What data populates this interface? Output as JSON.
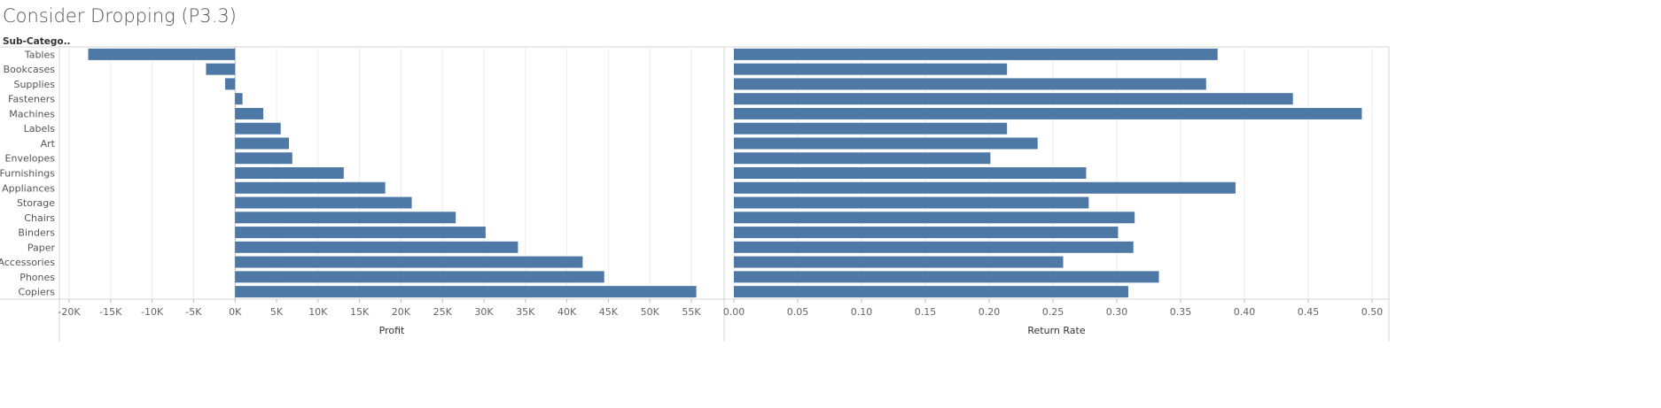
{
  "title": "Consider Dropping (P3.3)",
  "chart_data": [
    {
      "type": "bar",
      "orientation": "horizontal",
      "row_header": "Sub-Catego..",
      "categories": [
        "Tables",
        "Bookcases",
        "Supplies",
        "Fasteners",
        "Machines",
        "Labels",
        "Art",
        "Envelopes",
        "Furnishings",
        "Appliances",
        "Storage",
        "Chairs",
        "Binders",
        "Paper",
        "Accessories",
        "Phones",
        "Copiers"
      ],
      "values": [
        -17700,
        -3500,
        -1200,
        900,
        3400,
        5500,
        6500,
        6900,
        13100,
        18100,
        21300,
        26600,
        30200,
        34100,
        41900,
        44500,
        55600
      ],
      "xlabel": "Profit",
      "xlim": [
        -20000,
        55000
      ],
      "ticks": [
        -20000,
        -15000,
        -10000,
        -5000,
        0,
        5000,
        10000,
        15000,
        20000,
        25000,
        30000,
        35000,
        40000,
        45000,
        50000,
        55000
      ],
      "tick_labels": [
        "-20K",
        "-15K",
        "-10K",
        "-5K",
        "0K",
        "5K",
        "10K",
        "15K",
        "20K",
        "25K",
        "30K",
        "35K",
        "40K",
        "45K",
        "50K",
        "55K"
      ],
      "grid": true,
      "bar_color": "#4e79a7"
    },
    {
      "type": "bar",
      "orientation": "horizontal",
      "categories": [
        "Tables",
        "Bookcases",
        "Supplies",
        "Fasteners",
        "Machines",
        "Labels",
        "Art",
        "Envelopes",
        "Furnishings",
        "Appliances",
        "Storage",
        "Chairs",
        "Binders",
        "Paper",
        "Accessories",
        "Phones",
        "Copiers"
      ],
      "values": [
        0.379,
        0.214,
        0.37,
        0.438,
        0.492,
        0.214,
        0.238,
        0.201,
        0.276,
        0.393,
        0.278,
        0.314,
        0.301,
        0.313,
        0.258,
        0.333,
        0.309
      ],
      "xlabel": "Return Rate",
      "xlim": [
        0,
        0.5
      ],
      "ticks": [
        0,
        0.05,
        0.1,
        0.15,
        0.2,
        0.25,
        0.3,
        0.35,
        0.4,
        0.45,
        0.5
      ],
      "tick_labels": [
        "0.00",
        "0.05",
        "0.10",
        "0.15",
        "0.20",
        "0.25",
        "0.30",
        "0.35",
        "0.40",
        "0.45",
        "0.50"
      ],
      "grid": true,
      "bar_color": "#4e79a7"
    }
  ]
}
